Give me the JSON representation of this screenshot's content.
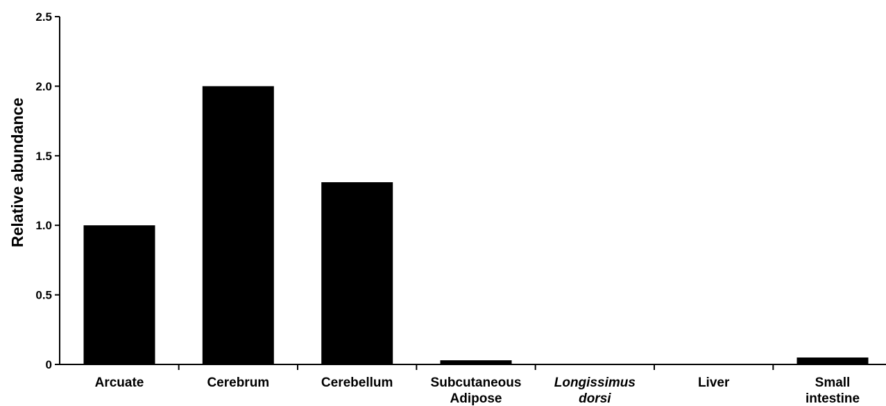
{
  "chart_data": {
    "type": "bar",
    "title": "",
    "xlabel": "",
    "ylabel": "Relative abundance",
    "ylim": [
      0,
      2.5
    ],
    "yticks": [
      {
        "value": 0,
        "label": "0"
      },
      {
        "value": 0.5,
        "label": "0.5"
      },
      {
        "value": 1.0,
        "label": "1.0"
      },
      {
        "value": 1.5,
        "label": "1.5"
      },
      {
        "value": 2.0,
        "label": "2.0"
      },
      {
        "value": 2.5,
        "label": "2.5"
      }
    ],
    "categories": [
      {
        "lines": [
          "Arcuate"
        ],
        "italic": false
      },
      {
        "lines": [
          "Cerebrum"
        ],
        "italic": false
      },
      {
        "lines": [
          "Cerebellum"
        ],
        "italic": false
      },
      {
        "lines": [
          "Subcutaneous",
          "Adipose"
        ],
        "italic": false
      },
      {
        "lines": [
          "Longissimus",
          "dorsi"
        ],
        "italic": true
      },
      {
        "lines": [
          "Liver"
        ],
        "italic": false
      },
      {
        "lines": [
          "Small",
          "intestine"
        ],
        "italic": false
      }
    ],
    "values": [
      1.0,
      2.0,
      1.31,
      0.03,
      0.0,
      0.0,
      0.05
    ],
    "bar_color": "#000000",
    "grid": false,
    "legend": "none"
  }
}
